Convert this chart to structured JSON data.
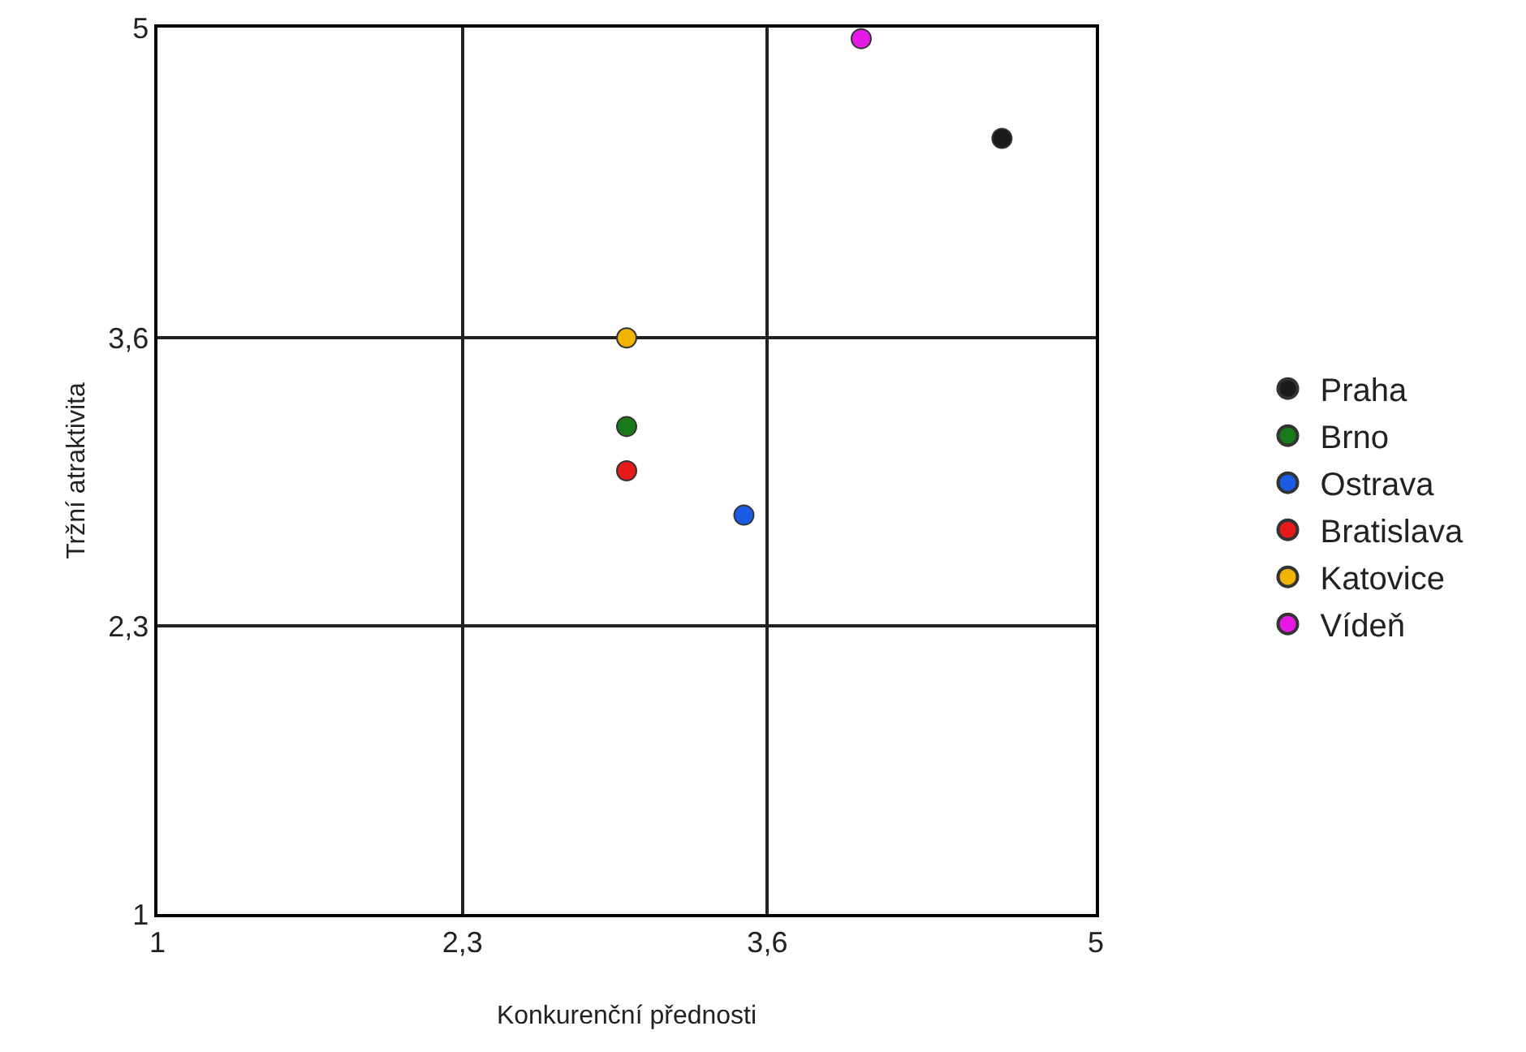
{
  "chart_data": {
    "type": "scatter",
    "xlabel": "Konkurenční přednosti",
    "ylabel": "Tržní atraktivita",
    "xlim": [
      1,
      5
    ],
    "ylim": [
      1,
      5
    ],
    "xticks": [
      1,
      {
        "value": 2.3,
        "label": "2,3"
      },
      {
        "value": 3.6,
        "label": "3,6"
      },
      5
    ],
    "yticks": [
      1,
      {
        "value": 2.3,
        "label": "2,3"
      },
      {
        "value": 3.6,
        "label": "3,6"
      },
      5
    ],
    "grid": true,
    "legend": "right",
    "marker": "circle",
    "series": [
      {
        "name": "Praha",
        "color": "#1a1a1a",
        "x": [
          4.6
        ],
        "values": [
          4.5
        ]
      },
      {
        "name": "Brno",
        "color": "#1a7a1a",
        "x": [
          3.0
        ],
        "values": [
          3.2
        ]
      },
      {
        "name": "Ostrava",
        "color": "#1a5ce6",
        "x": [
          3.5
        ],
        "values": [
          2.8
        ]
      },
      {
        "name": "Bratislava",
        "color": "#e61a1a",
        "x": [
          3.0
        ],
        "values": [
          3.0
        ]
      },
      {
        "name": "Katovice",
        "color": "#f0b400",
        "x": [
          3.0
        ],
        "values": [
          3.6
        ]
      },
      {
        "name": "Vídeň",
        "color": "#e61ae6",
        "x": [
          4.0
        ],
        "values": [
          4.95
        ]
      }
    ]
  }
}
